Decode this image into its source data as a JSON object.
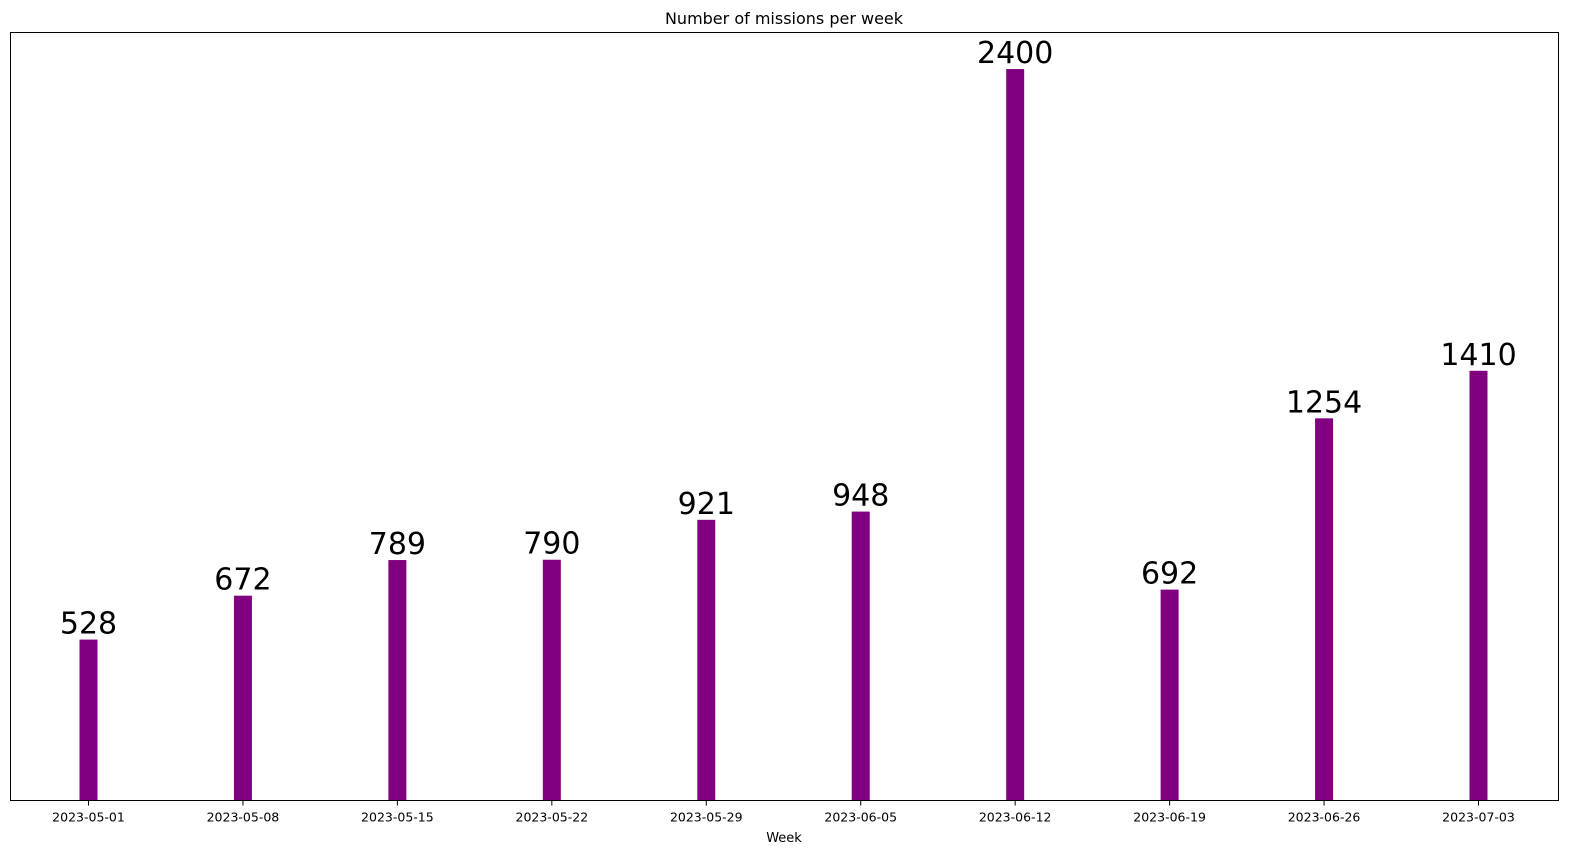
{
  "chart_data": {
    "type": "bar",
    "title": "Number of missions per week",
    "xlabel": "Week",
    "ylabel": "",
    "categories": [
      "2023-05-01",
      "2023-05-08",
      "2023-05-15",
      "2023-05-22",
      "2023-05-29",
      "2023-06-05",
      "2023-06-12",
      "2023-06-19",
      "2023-06-26",
      "2023-07-03"
    ],
    "values": [
      528,
      672,
      789,
      790,
      921,
      948,
      2400,
      692,
      1254,
      1410
    ],
    "ylim": [
      0,
      2520
    ],
    "bar_color": "#800080",
    "grid": false,
    "y_ticks_visible": false,
    "data_labels": true
  }
}
